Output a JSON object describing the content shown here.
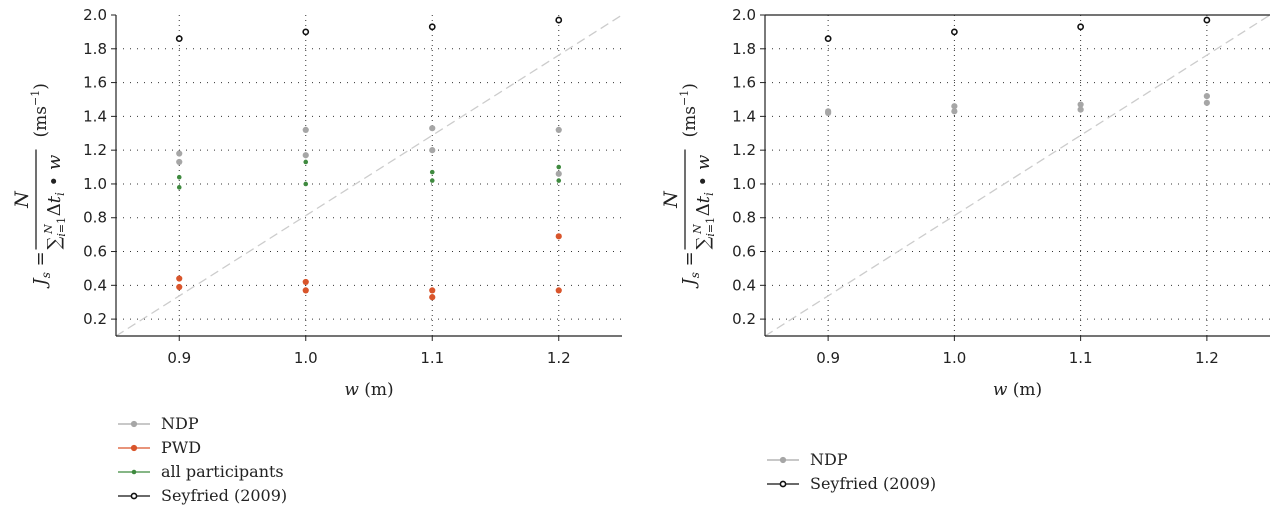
{
  "colors": {
    "NDP": "#a6a6a6",
    "PWD": "#d9552b",
    "all": "#3f8a3f",
    "seyfried": "#111111",
    "diag": "#cccccc",
    "grid": "#333333"
  },
  "chart_data": [
    {
      "type": "scatter",
      "xlabel": "w (m)",
      "ylabel": "J_s = N / (Σ_{i=1}^{N} Δt_i • w) (ms⁻¹)",
      "xlim": [
        0.85,
        1.25
      ],
      "ylim": [
        0.1,
        2.0
      ],
      "xticks": [
        "0.9",
        "1.0",
        "1.1",
        "1.2"
      ],
      "yticks": [
        "0.2",
        "0.4",
        "0.6",
        "0.8",
        "1.0",
        "1.2",
        "1.4",
        "1.6",
        "1.8",
        "2.0"
      ],
      "grid": true,
      "legend_position": "below-left",
      "series": [
        {
          "name": "NDP",
          "color_key": "NDP",
          "marker": "filled",
          "points": [
            [
              0.9,
              1.18
            ],
            [
              0.9,
              1.13
            ],
            [
              1.0,
              1.32
            ],
            [
              1.0,
              1.17
            ],
            [
              1.1,
              1.33
            ],
            [
              1.1,
              1.2
            ],
            [
              1.2,
              1.32
            ],
            [
              1.2,
              1.06
            ]
          ]
        },
        {
          "name": "PWD",
          "color_key": "PWD",
          "marker": "filled",
          "points": [
            [
              0.9,
              0.44
            ],
            [
              0.9,
              0.39
            ],
            [
              1.0,
              0.42
            ],
            [
              1.0,
              0.37
            ],
            [
              1.1,
              0.37
            ],
            [
              1.1,
              0.33
            ],
            [
              1.2,
              0.69
            ],
            [
              1.2,
              0.37
            ]
          ]
        },
        {
          "name": "all participants",
          "color_key": "all",
          "marker": "small",
          "points": [
            [
              0.9,
              1.04
            ],
            [
              0.9,
              0.98
            ],
            [
              1.0,
              1.13
            ],
            [
              1.0,
              1.0
            ],
            [
              1.1,
              1.07
            ],
            [
              1.1,
              1.02
            ],
            [
              1.2,
              1.1
            ],
            [
              1.2,
              1.02
            ]
          ]
        },
        {
          "name": "Seyfried (2009)",
          "color_key": "seyfried",
          "marker": "open",
          "points": [
            [
              0.9,
              1.86
            ],
            [
              1.0,
              1.9
            ],
            [
              1.1,
              1.93
            ],
            [
              1.2,
              1.97
            ]
          ]
        }
      ]
    },
    {
      "type": "scatter",
      "xlabel": "w (m)",
      "ylabel": "J_s = N / (Σ_{i=1}^{N} Δt_i • w) (ms⁻¹)",
      "xlim": [
        0.85,
        1.25
      ],
      "ylim": [
        0.1,
        2.0
      ],
      "xticks": [
        "0.9",
        "1.0",
        "1.1",
        "1.2"
      ],
      "yticks": [
        "0.2",
        "0.4",
        "0.6",
        "0.8",
        "1.0",
        "1.2",
        "1.4",
        "1.6",
        "1.8",
        "2.0"
      ],
      "grid": true,
      "legend_position": "below-left",
      "series": [
        {
          "name": "NDP",
          "color_key": "NDP",
          "marker": "filled",
          "points": [
            [
              0.9,
              1.43
            ],
            [
              0.9,
              1.42
            ],
            [
              1.0,
              1.46
            ],
            [
              1.0,
              1.43
            ],
            [
              1.1,
              1.47
            ],
            [
              1.1,
              1.44
            ],
            [
              1.2,
              1.52
            ],
            [
              1.2,
              1.48
            ]
          ]
        },
        {
          "name": "Seyfried (2009)",
          "color_key": "seyfried",
          "marker": "open",
          "points": [
            [
              0.9,
              1.86
            ],
            [
              1.0,
              1.9
            ],
            [
              1.1,
              1.93
            ],
            [
              1.2,
              1.97
            ]
          ]
        }
      ]
    }
  ]
}
